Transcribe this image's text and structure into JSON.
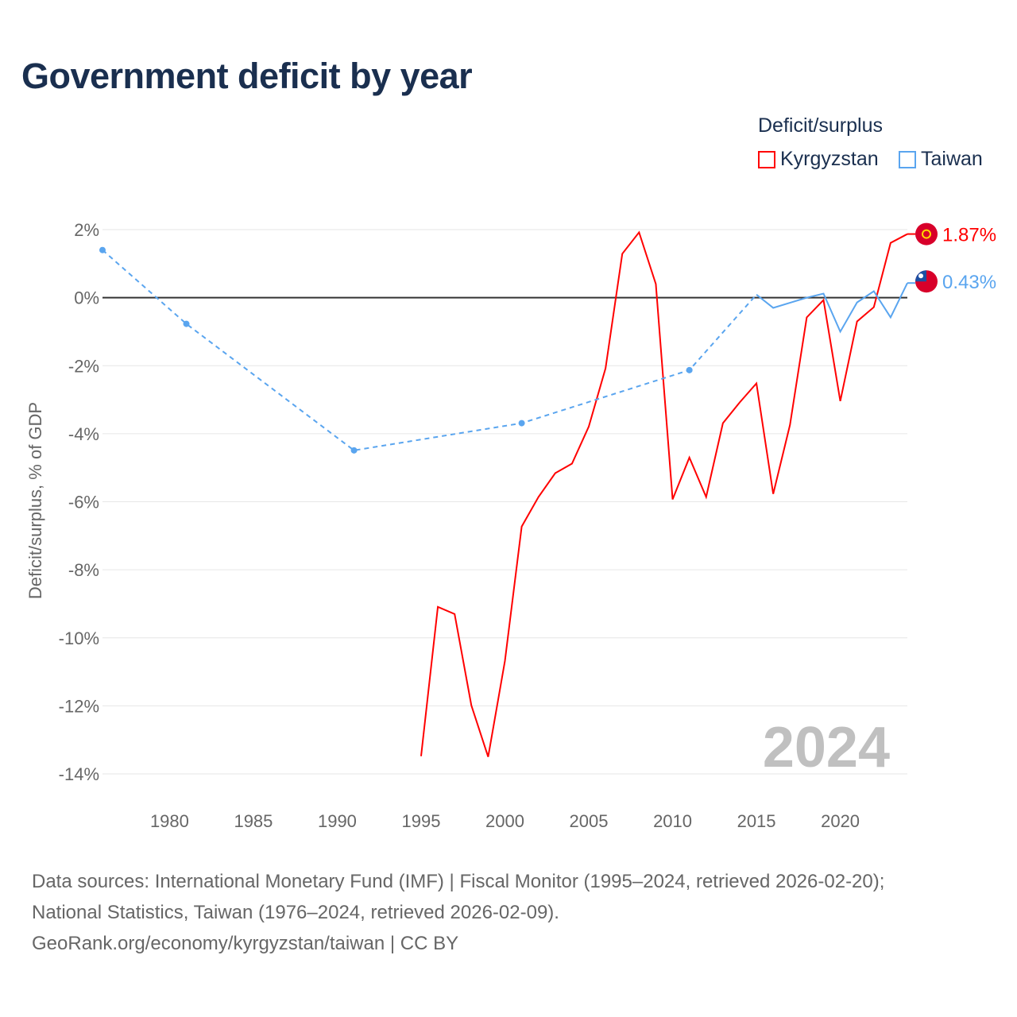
{
  "title": "Government deficit by year",
  "legend": {
    "title": "Deficit/surplus",
    "items": [
      {
        "name": "Kyrgyzstan",
        "color": "#ff0000"
      },
      {
        "name": "Taiwan",
        "color": "#5aa5ef"
      }
    ]
  },
  "footer": [
    "Data sources: International Monetary Fund (IMF) | Fiscal Monitor (1995–2024, retrieved 2026-02-20);",
    "National Statistics, Taiwan (1976–2024, retrieved 2026-02-09).",
    "GeoRank.org/economy/kyrgyzstan/taiwan | CC BY"
  ],
  "chart_data": {
    "type": "line",
    "title": "Government deficit by year",
    "ylabel": "Deficit/surplus, % of GDP",
    "xlabel": "",
    "xlim": [
      1976,
      2024
    ],
    "ylim": [
      -14,
      2
    ],
    "xticks": [
      1980,
      1985,
      1990,
      1995,
      2000,
      2005,
      2010,
      2015,
      2020
    ],
    "yticks": [
      2,
      0,
      -2,
      -4,
      -6,
      -8,
      -10,
      -12,
      -14
    ],
    "ytick_labels": [
      "2%",
      "0%",
      "-2%",
      "-4%",
      "-6%",
      "-8%",
      "-10%",
      "-12%",
      "-14%"
    ],
    "watermark": "2024",
    "series": [
      {
        "name": "Kyrgyzstan",
        "color": "#ff0000",
        "end_label": "1.87%",
        "x": [
          1995,
          1996,
          1997,
          1998,
          1999,
          2000,
          2001,
          2002,
          2003,
          2004,
          2005,
          2006,
          2007,
          2008,
          2009,
          2010,
          2011,
          2012,
          2013,
          2014,
          2015,
          2016,
          2017,
          2018,
          2019,
          2020,
          2021,
          2022,
          2023,
          2024
        ],
        "y": [
          -13.48,
          -9.09,
          -9.3,
          -11.99,
          -13.5,
          -10.68,
          -6.73,
          -5.86,
          -5.16,
          -4.88,
          -3.79,
          -2.08,
          1.29,
          1.92,
          0.4,
          -5.93,
          -4.7,
          -5.86,
          -3.69,
          -3.08,
          -2.52,
          -5.77,
          -3.74,
          -0.58,
          -0.07,
          -3.04,
          -0.7,
          -0.28,
          1.61,
          1.87
        ]
      },
      {
        "name": "Taiwan",
        "color": "#5aa5ef",
        "end_label": "0.43%",
        "x": [
          1976,
          1981,
          1991,
          2001,
          2011,
          2015,
          2016,
          2017,
          2018,
          2019,
          2020,
          2021,
          2022,
          2023,
          2024
        ],
        "y": [
          1.4,
          -0.77,
          -4.49,
          -3.69,
          -2.13,
          0.09,
          -0.3,
          -0.15,
          0.0,
          0.12,
          -1.0,
          -0.14,
          0.19,
          -0.58,
          0.43
        ],
        "sparse_until": 2015
      }
    ]
  }
}
